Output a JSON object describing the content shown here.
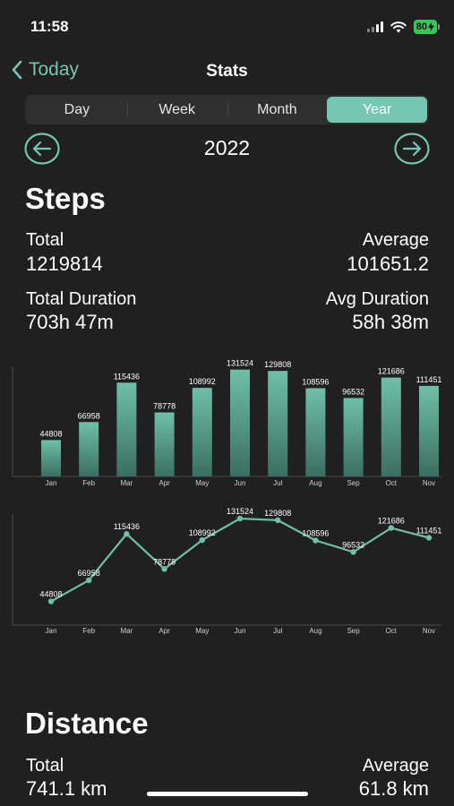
{
  "status_bar": {
    "time": "11:58",
    "battery": "80"
  },
  "nav": {
    "back_label": "Today",
    "title": "Stats"
  },
  "segments": [
    {
      "label": "Day",
      "active": false
    },
    {
      "label": "Week",
      "active": false
    },
    {
      "label": "Month",
      "active": false
    },
    {
      "label": "Year",
      "active": true
    }
  ],
  "year_selector": {
    "year": "2022",
    "prev_icon": "arrow-left-circle-icon",
    "next_icon": "arrow-right-circle-icon"
  },
  "steps": {
    "title": "Steps",
    "total_label": "Total",
    "total_value": "1219814",
    "average_label": "Average",
    "average_value": "101651.2",
    "total_duration_label": "Total Duration",
    "total_duration_value": "703h 47m",
    "avg_duration_label": "Avg Duration",
    "avg_duration_value": "58h 38m"
  },
  "distance": {
    "title": "Distance",
    "total_label": "Total",
    "total_value": "741.1 km",
    "average_label": "Average",
    "average_value": "61.8 km"
  },
  "colors": {
    "accent": "#76c7b1",
    "background": "#202020",
    "segment_bg": "#2f2f2f"
  },
  "chart_data": [
    {
      "type": "bar",
      "categories": [
        "Jan",
        "Feb",
        "Mar",
        "Apr",
        "May",
        "Jun",
        "Jul",
        "Aug",
        "Sep",
        "Oct",
        "Nov"
      ],
      "values": [
        44808,
        66958,
        115436,
        78778,
        108992,
        131524,
        129808,
        108596,
        96532,
        121686,
        111451
      ],
      "ylim": [
        0,
        140000
      ],
      "grid": false
    },
    {
      "type": "line",
      "categories": [
        "Jan",
        "Feb",
        "Mar",
        "Apr",
        "May",
        "Jun",
        "Jul",
        "Aug",
        "Sep",
        "Oct",
        "Nov"
      ],
      "values": [
        44808,
        66958,
        115436,
        78778,
        108992,
        131524,
        129808,
        108596,
        96532,
        121686,
        111451
      ],
      "ylim": [
        20000,
        140000
      ],
      "grid": false
    }
  ]
}
